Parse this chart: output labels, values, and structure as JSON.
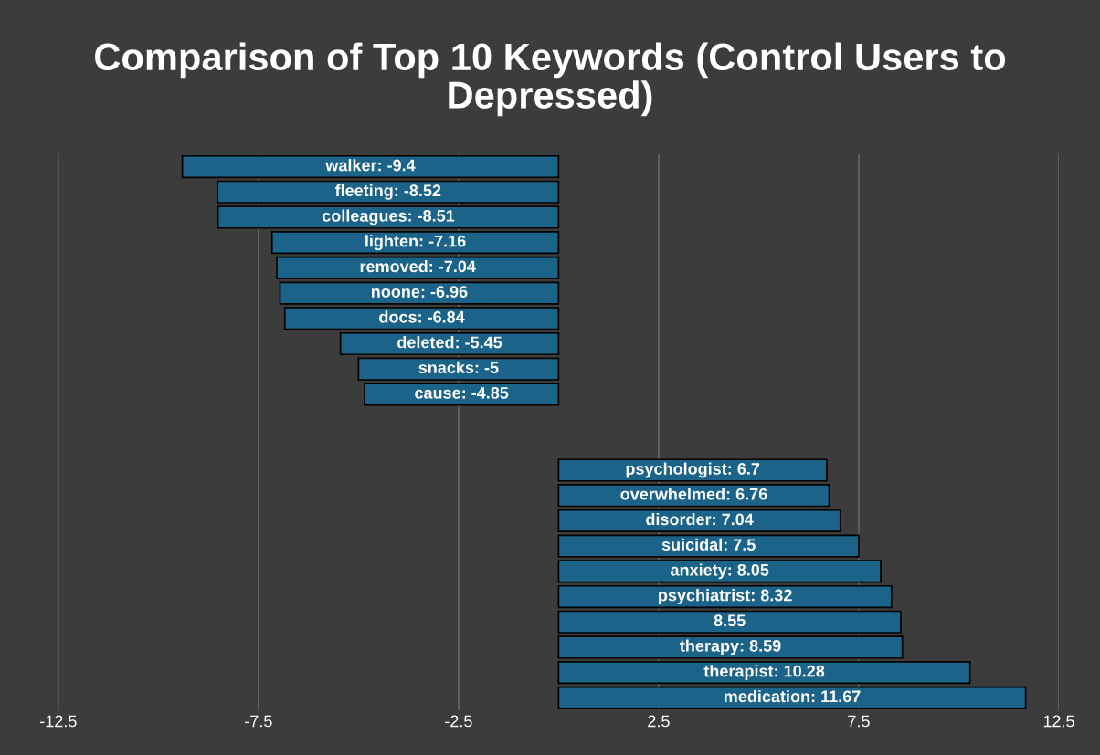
{
  "chart_data": {
    "type": "bar",
    "orientation": "horizontal",
    "title": "Comparison of Top 10 Keywords (Control Users to Depressed)",
    "categories": [
      null,
      null,
      null,
      null,
      null,
      null,
      null,
      null,
      null,
      null,
      null,
      null,
      null,
      null,
      null,
      null,
      null,
      null,
      null,
      null,
      null,
      null
    ],
    "values": [
      -9.4,
      -8.52,
      -8.51,
      -7.16,
      -7.04,
      -6.96,
      -6.84,
      -5.45,
      -5,
      -4.85,
      null,
      null,
      6.7,
      6.76,
      7.04,
      7.5,
      8.05,
      8.32,
      8.55,
      8.59,
      10.28,
      11.67
    ],
    "value_labels": [
      "walker: -9.4",
      "fleeting: -8.52",
      "colleagues: -8.51",
      "lighten: -7.16",
      "removed: -7.04",
      "noone: -6.96",
      "docs: -6.84",
      "deleted: -5.45",
      "snacks: -5",
      "cause: -4.85",
      null,
      null,
      "psychologist: 6.7",
      "overwhelmed: 6.76",
      "disorder: 7.04",
      "suicidal: 7.5",
      "anxiety: 8.05",
      "psychiatrist: 8.32",
      "8.55",
      "therapy: 8.59",
      "therapist: 10.28",
      "medication: 11.67"
    ],
    "color": "#1b6388",
    "xlim": [
      -12.5,
      12.5
    ],
    "xticks": [
      -12.5,
      -7.5,
      -2.5,
      2.5,
      7.5,
      12.5
    ],
    "grid": "x"
  }
}
